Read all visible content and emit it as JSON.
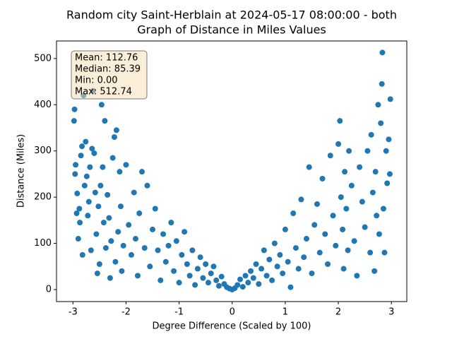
{
  "chart_data": {
    "type": "scatter",
    "title": [
      "Random city Saint-Herblain at 2024-05-17 08:00:00  - both",
      "Graph of Distance in Miles Values"
    ],
    "x_label": "Degree Difference (Scaled by 100)",
    "y_label": "Distance (Miles)",
    "annotations": [
      "Mean: 112.76",
      "Median: 85.39",
      "Min: 0.00",
      "Max: 512.74"
    ],
    "color": "#1f77b4",
    "xlim": [
      -3.31,
      3.29
    ],
    "ylim": [
      -26,
      538
    ],
    "xticks": [
      -3,
      -2,
      -1,
      0,
      1,
      2,
      3
    ],
    "yticks": [
      0,
      100,
      200,
      300,
      400,
      500
    ],
    "x": [
      -2.98,
      -2.97,
      -2.96,
      -2.95,
      -2.93,
      -2.92,
      -2.9,
      -2.88,
      -2.87,
      -2.85,
      -2.83,
      -2.82,
      -2.8,
      -2.78,
      -2.76,
      -2.74,
      -2.72,
      -2.7,
      -2.68,
      -2.66,
      -2.64,
      -2.62,
      -2.6,
      -2.58,
      -2.56,
      -2.54,
      -2.52,
      -2.5,
      -2.48,
      -2.46,
      -2.44,
      -2.42,
      -2.4,
      -2.38,
      -2.35,
      -2.32,
      -2.3,
      -2.28,
      -2.25,
      -2.22,
      -2.2,
      -2.18,
      -2.15,
      -2.12,
      -2.1,
      -2.08,
      -2.05,
      -2.0,
      -1.95,
      -1.9,
      -1.85,
      -1.82,
      -1.78,
      -1.75,
      -1.7,
      -1.65,
      -1.6,
      -1.55,
      -1.5,
      -1.45,
      -1.4,
      -1.35,
      -1.3,
      -1.25,
      -1.2,
      -1.15,
      -1.1,
      -1.05,
      -1.0,
      -0.95,
      -0.9,
      -0.85,
      -0.8,
      -0.75,
      -0.7,
      -0.65,
      -0.6,
      -0.55,
      -0.5,
      -0.45,
      -0.4,
      -0.35,
      -0.3,
      -0.25,
      -0.2,
      -0.15,
      -0.1,
      -0.05,
      0,
      0.05,
      0.1,
      0.15,
      0.2,
      0.25,
      0.3,
      0.35,
      0.4,
      0.45,
      0.5,
      0.55,
      0.6,
      0.65,
      0.7,
      0.75,
      0.8,
      0.85,
      0.9,
      0.95,
      1.0,
      1.05,
      1.1,
      1.15,
      1.2,
      1.25,
      1.3,
      1.35,
      1.4,
      1.45,
      1.5,
      1.55,
      1.6,
      1.65,
      1.7,
      1.75,
      1.8,
      1.85,
      1.9,
      1.95,
      2.0,
      2.03,
      2.05,
      2.08,
      2.1,
      2.12,
      2.15,
      2.18,
      2.2,
      2.25,
      2.3,
      2.35,
      2.4,
      2.45,
      2.5,
      2.55,
      2.6,
      2.62,
      2.65,
      2.68,
      2.7,
      2.72,
      2.75,
      2.77,
      2.8,
      2.82,
      2.83,
      2.85,
      2.87,
      2.9,
      2.92,
      2.95,
      2.97,
      2.98
    ],
    "y": [
      365,
      390,
      250,
      270,
      165,
      208,
      110,
      175,
      145,
      290,
      310,
      75,
      420,
      225,
      320,
      245,
      160,
      190,
      265,
      85,
      305,
      430,
      295,
      210,
      120,
      35,
      180,
      55,
      225,
      400,
      265,
      145,
      365,
      90,
      205,
      155,
      25,
      105,
      285,
      330,
      60,
      345,
      125,
      255,
      180,
      40,
      95,
      270,
      140,
      75,
      210,
      110,
      30,
      165,
      255,
      90,
      225,
      50,
      130,
      175,
      85,
      20,
      120,
      60,
      95,
      145,
      40,
      105,
      15,
      75,
      125,
      55,
      30,
      85,
      10,
      45,
      70,
      25,
      55,
      15,
      35,
      50,
      20,
      8,
      28,
      12,
      5,
      2,
      0,
      3,
      10,
      22,
      6,
      30,
      15,
      40,
      25,
      55,
      12,
      45,
      85,
      30,
      65,
      20,
      100,
      50,
      75,
      35,
      130,
      60,
      5,
      165,
      90,
      45,
      195,
      70,
      110,
      265,
      35,
      140,
      185,
      80,
      240,
      120,
      55,
      290,
      160,
      95,
      315,
      365,
      200,
      130,
      45,
      255,
      175,
      85,
      300,
      225,
      105,
      30,
      265,
      190,
      135,
      300,
      80,
      335,
      210,
      40,
      255,
      160,
      400,
      120,
      360,
      445,
      513,
      175,
      80,
      300,
      230,
      325,
      250,
      412
    ]
  }
}
